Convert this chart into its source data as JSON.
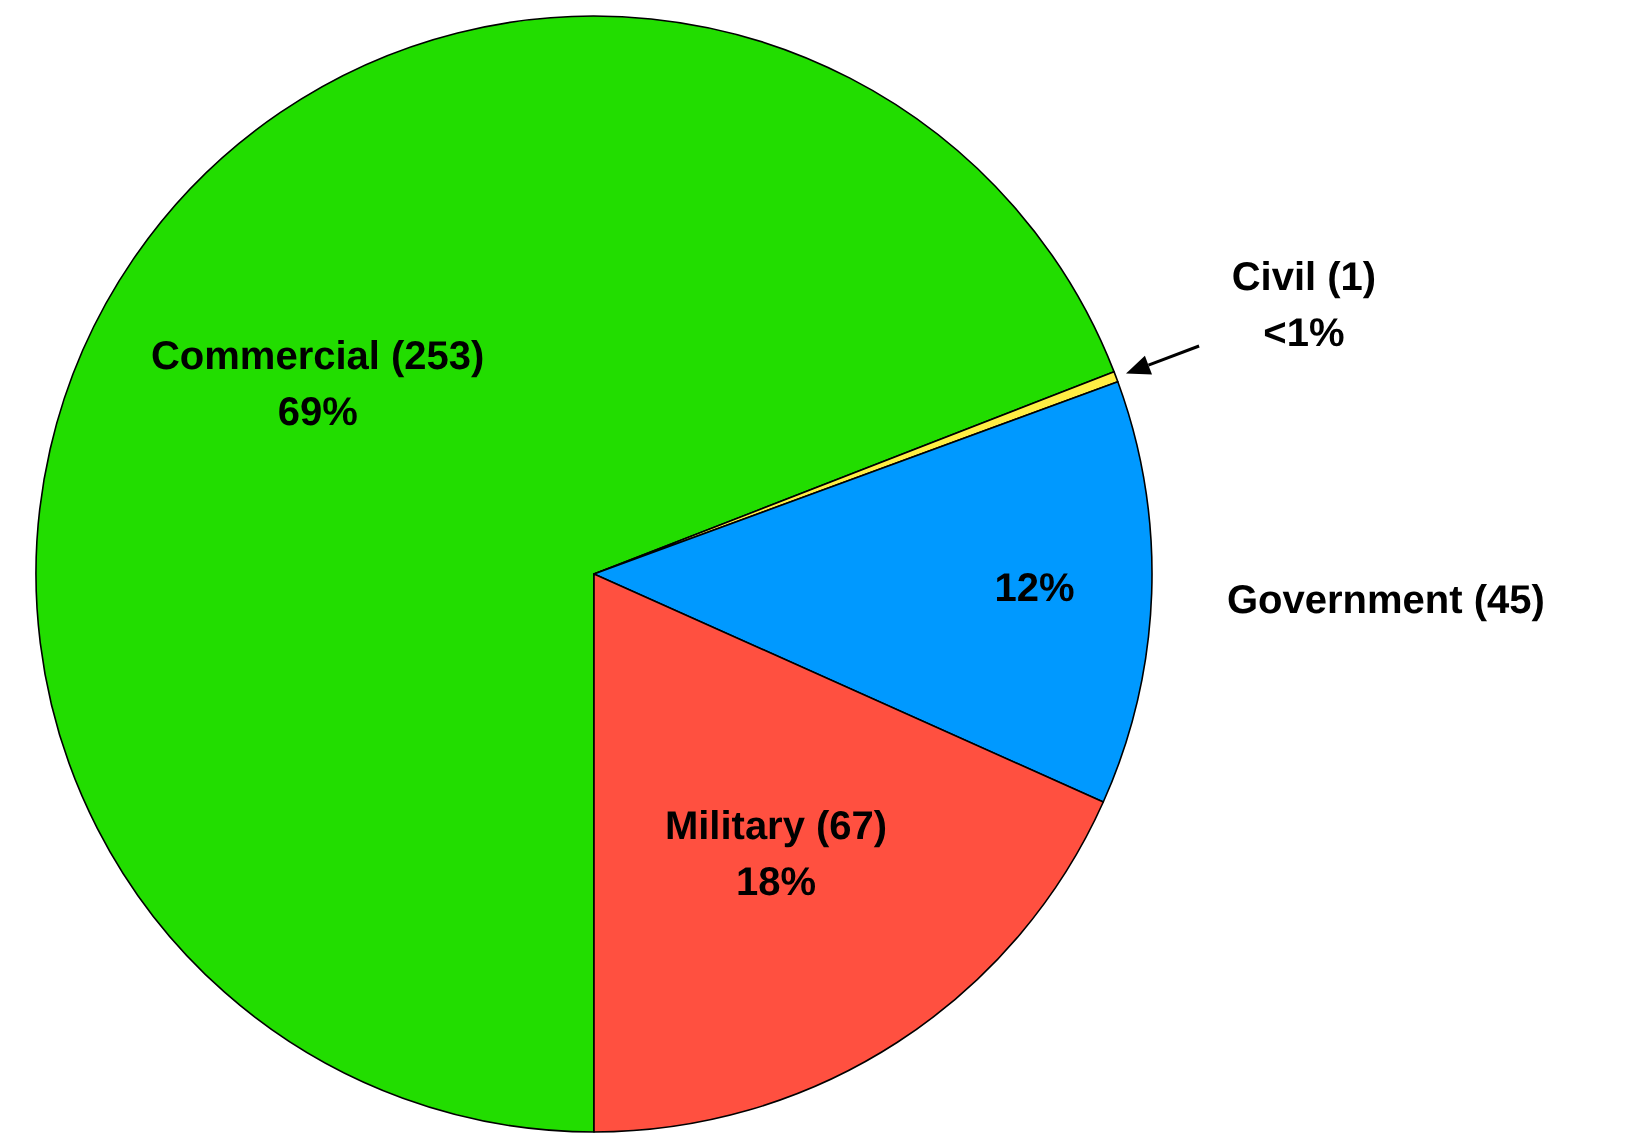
{
  "chart_data": {
    "type": "pie",
    "categories": [
      "Commercial (253)",
      "Civil (1)",
      "Government (45)",
      "Military (67)"
    ],
    "values": [
      69.1,
      0.3,
      12.3,
      18.3
    ],
    "colors": [
      "#22dd00",
      "#ffee44",
      "#0099ff",
      "#ff5040"
    ],
    "value_labels": [
      "69%",
      "<1%",
      "12%",
      "18%"
    ]
  }
}
